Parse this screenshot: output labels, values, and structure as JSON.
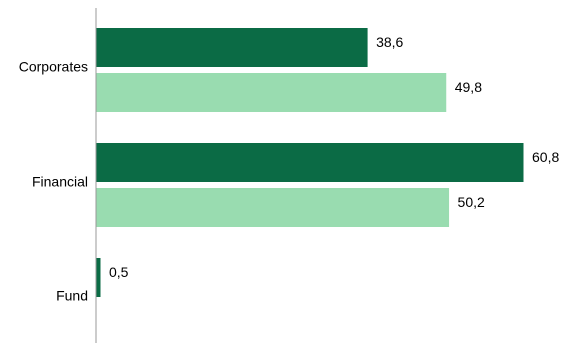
{
  "chart_data": {
    "type": "bar",
    "orientation": "horizontal",
    "categories": [
      "Corporates",
      "Financial",
      "Fund"
    ],
    "series": [
      {
        "color": "#0b6b45",
        "values": [
          38.6,
          60.8,
          0.5
        ],
        "labels": [
          "38,6",
          "60,8",
          "0,5"
        ]
      },
      {
        "color": "#99dcb0",
        "values": [
          49.8,
          50.2,
          null
        ],
        "labels": [
          "49,8",
          "50,2",
          ""
        ]
      }
    ],
    "xlim": [
      0,
      60.8
    ],
    "grid": false,
    "legend": "none",
    "axis_color": "#999999"
  }
}
